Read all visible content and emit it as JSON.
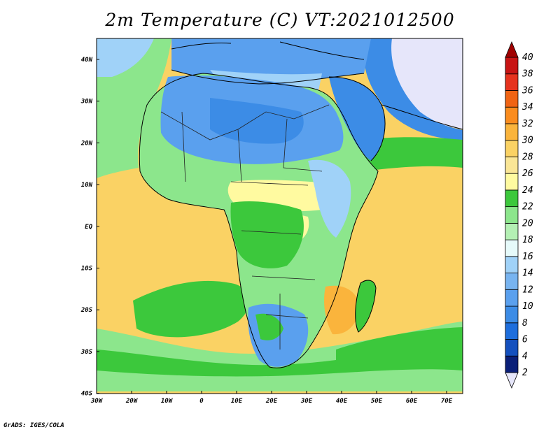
{
  "title": "2m Temperature (C) VT:2021012500",
  "credit": "GrADS: IGES/COLA",
  "lat_labels": [
    "40N",
    "30N",
    "20N",
    "10N",
    "EQ",
    "10S",
    "20S",
    "30S",
    "40S"
  ],
  "lon_labels": [
    "30W",
    "20W",
    "10W",
    "0",
    "10E",
    "20E",
    "30E",
    "40E",
    "50E",
    "60E",
    "70E"
  ],
  "colorbar": {
    "levels": [
      2,
      4,
      6,
      8,
      10,
      12,
      14,
      16,
      18,
      20,
      22,
      24,
      26,
      28,
      30,
      32,
      34,
      36,
      38,
      40
    ],
    "colors": [
      "#e6e6fa",
      "#0a1f78",
      "#1450be",
      "#1e6edc",
      "#3c8ce6",
      "#5aa0ee",
      "#78b4f0",
      "#a0d2f8",
      "#e6fafa",
      "#b4f0b4",
      "#8ce68c",
      "#3cc83c",
      "#fffaa0",
      "#fae696",
      "#fad264",
      "#fab43c",
      "#fa8c1e",
      "#f06414",
      "#e6321e",
      "#c81414",
      "#a00000"
    ]
  },
  "regions": [
    {
      "name": "background-ocean",
      "color": "#fad264"
    },
    {
      "name": "southern-ocean-band",
      "color": "#3cc83c"
    },
    {
      "name": "southern-cool-band",
      "color": "#8ce68c"
    },
    {
      "name": "south-atlantic-cool",
      "color": "#3cc83c"
    },
    {
      "name": "north-atlantic",
      "color": "#8ce68c"
    },
    {
      "name": "mediterranean",
      "color": "#a0d2f8"
    },
    {
      "name": "africa-green",
      "color": "#8ce68c"
    },
    {
      "name": "sahara",
      "color": "#5aa0ee"
    },
    {
      "name": "arabia",
      "color": "#3c8ce6"
    },
    {
      "name": "asia-cold",
      "color": "#e6e6fa"
    },
    {
      "name": "south-africa",
      "color": "#5aa0ee"
    },
    {
      "name": "mozambique-warm",
      "color": "#fab43c"
    }
  ]
}
